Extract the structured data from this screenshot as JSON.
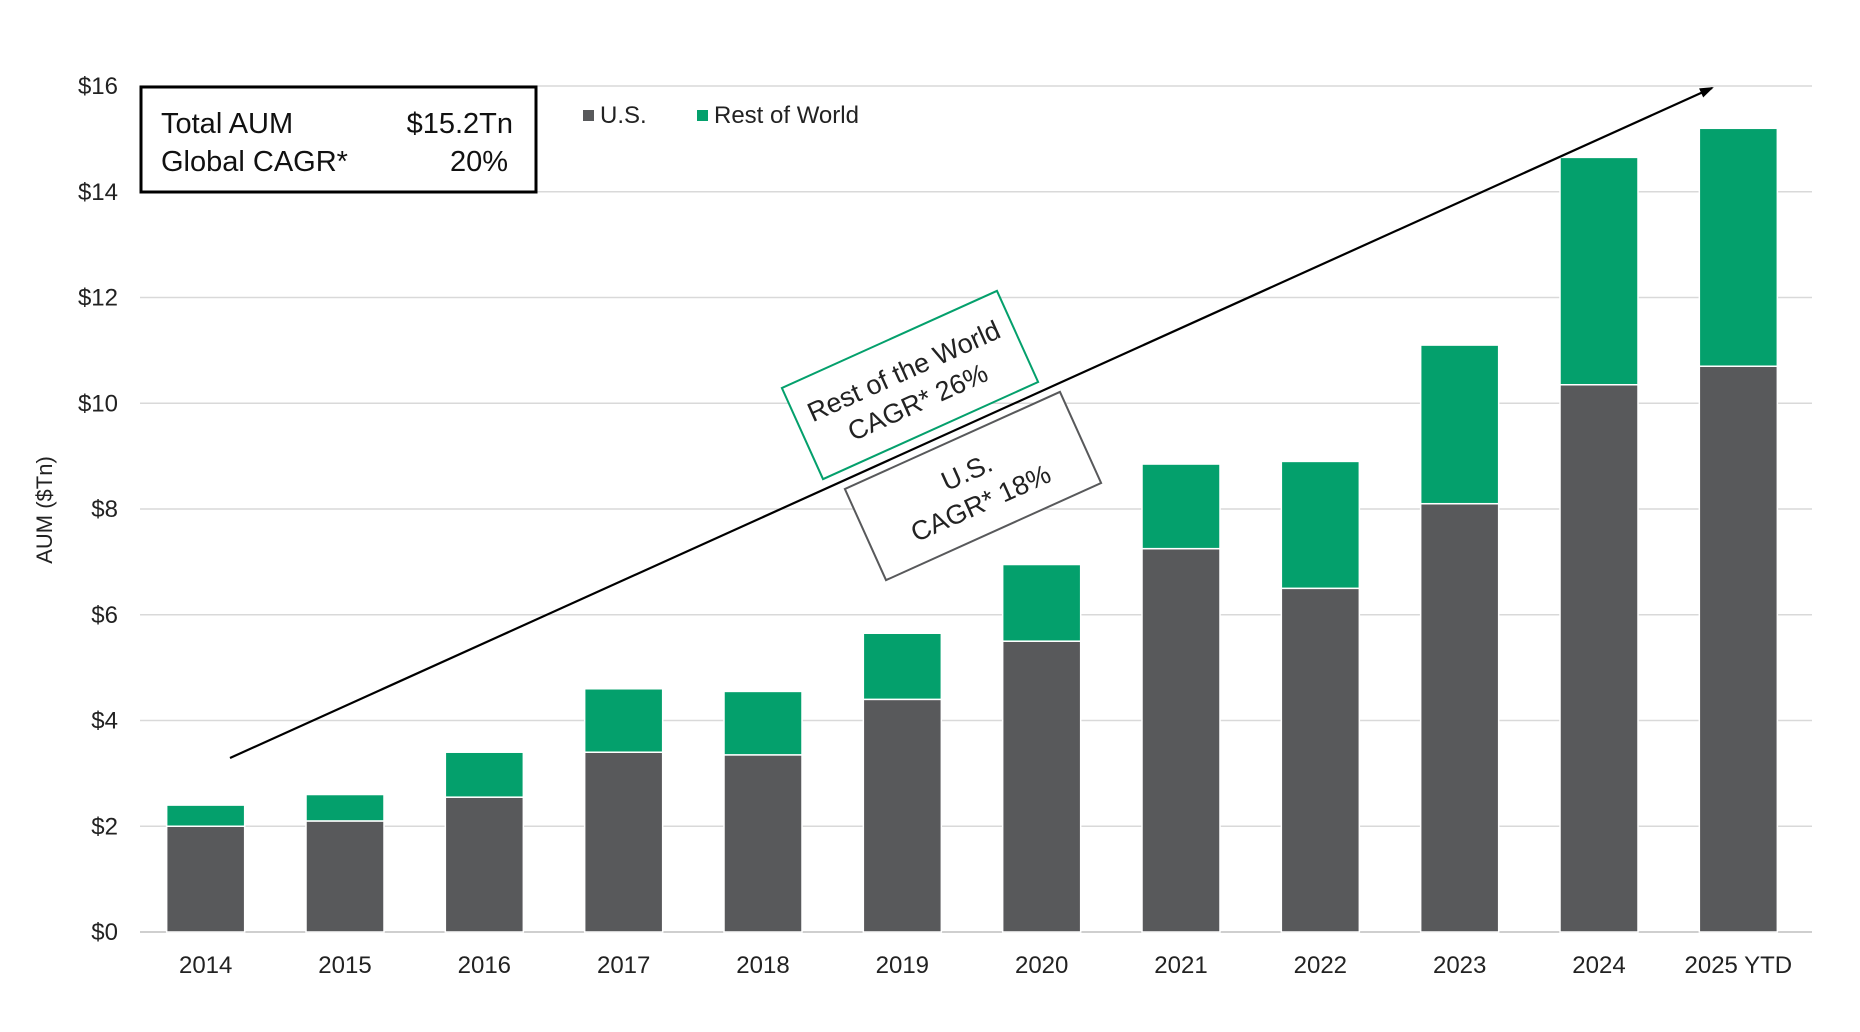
{
  "chart_data": {
    "type": "bar",
    "stacked": true,
    "title": "",
    "xlabel": "",
    "ylabel": "AUM ($Tn)",
    "ylim": [
      0,
      16
    ],
    "yticks": [
      0,
      2,
      4,
      6,
      8,
      10,
      12,
      14,
      16
    ],
    "ytick_labels": [
      "$0",
      "$2",
      "$4",
      "$6",
      "$8",
      "$10",
      "$12",
      "$14",
      "$16"
    ],
    "categories": [
      "2014",
      "2015",
      "2016",
      "2017",
      "2018",
      "2019",
      "2020",
      "2021",
      "2022",
      "2023",
      "2024",
      "2025 YTD"
    ],
    "series": [
      {
        "name": "U.S.",
        "color": "#58595b",
        "values": [
          2.0,
          2.1,
          2.55,
          3.4,
          3.35,
          4.4,
          5.5,
          7.25,
          6.5,
          8.1,
          10.35,
          10.7
        ]
      },
      {
        "name": "Rest of World",
        "color": "#04a06c",
        "values": [
          0.4,
          0.5,
          0.85,
          1.2,
          1.2,
          1.25,
          1.45,
          1.6,
          2.4,
          3.0,
          4.3,
          4.5
        ]
      }
    ],
    "legend": {
      "position": "top-left",
      "items": [
        "U.S.",
        "Rest of World"
      ]
    },
    "summary_box": {
      "rows": [
        {
          "label": "Total AUM",
          "value": "$15.2Tn"
        },
        {
          "label": "Global CAGR*",
          "value": "20%"
        }
      ]
    },
    "annotations": {
      "row_label_line1": "Rest of the World",
      "row_label_line2": "CAGR* 26%",
      "row_color": "#04a06c",
      "us_label_line1": "U.S.",
      "us_label_line2": "CAGR* 18%",
      "us_color": "#58595b"
    },
    "grid": true,
    "grid_color": "#d9d9d9"
  }
}
